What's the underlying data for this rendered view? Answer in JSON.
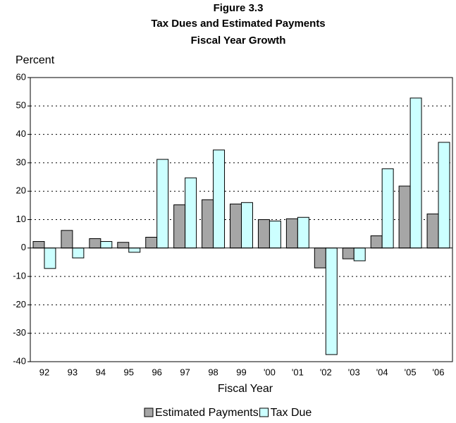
{
  "chart_data": {
    "type": "bar",
    "title": "Figure 3.3",
    "subtitle": [
      "Tax Dues and Estimated Payments",
      "Fiscal Year Growth"
    ],
    "ylabel": "Percent",
    "xlabel": "Fiscal Year",
    "categories": [
      "92",
      "93",
      "94",
      "95",
      "96",
      "97",
      "98",
      "99",
      "'00",
      "'01",
      "'02",
      "'03",
      "'04",
      "'05",
      "'06"
    ],
    "series": [
      {
        "name": "Estimated Payments",
        "color": "#a6a6a6",
        "values": [
          2.3,
          6.2,
          3.3,
          2,
          3.8,
          15.2,
          17,
          15.5,
          10,
          10.3,
          -7,
          -3.8,
          4.3,
          21.8,
          12
        ]
      },
      {
        "name": "Tax Due",
        "color": "#ccffff",
        "values": [
          -7.2,
          -3.5,
          2.3,
          -1.5,
          31.2,
          24.7,
          34.5,
          16,
          9.5,
          10.8,
          -37.5,
          -4.5,
          27.9,
          52.8,
          37.2
        ]
      }
    ],
    "ylim": [
      -40,
      60
    ],
    "yticks": [
      -40,
      -30,
      -20,
      -10,
      0,
      10,
      20,
      30,
      40,
      50,
      60
    ],
    "grid": true,
    "legend": "bottom"
  }
}
